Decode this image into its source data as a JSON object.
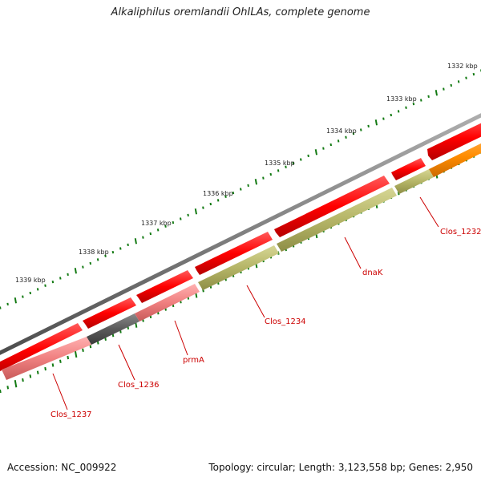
{
  "title": "Alkaliphilus oremlandii OhILAs, complete genome",
  "footer": {
    "accession": "Accession: NC_009922",
    "summary": "Topology: circular; Length: 3,123,558 bp; Genes: 2,950"
  },
  "colors": {
    "backbone": "#808080",
    "strand_forward": "#ff0000",
    "cds_olive": "#b5b567",
    "cds_pink": "#f08080",
    "cds_gray": "#5a5a5a",
    "cds_orange": "#ff8c00",
    "tick": "#137a13",
    "label": "#cc0000"
  },
  "scale": {
    "ticks": [
      {
        "label": "1332 kbp",
        "kbp": 1332
      },
      {
        "label": "1333 kbp",
        "kbp": 1333
      },
      {
        "label": "1334 kbp",
        "kbp": 1334
      },
      {
        "label": "1335 kbp",
        "kbp": 1335
      },
      {
        "label": "1336 kbp",
        "kbp": 1336
      },
      {
        "label": "1337 kbp",
        "kbp": 1337
      },
      {
        "label": "1338 kbp",
        "kbp": 1338
      },
      {
        "label": "1339 kbp",
        "kbp": 1339
      }
    ]
  },
  "gene_labels": [
    {
      "name": "Clos_1232"
    },
    {
      "name": "dnaK"
    },
    {
      "name": "Clos_1234"
    },
    {
      "name": "prmA"
    },
    {
      "name": "Clos_1236"
    },
    {
      "name": "Clos_1237"
    }
  ]
}
